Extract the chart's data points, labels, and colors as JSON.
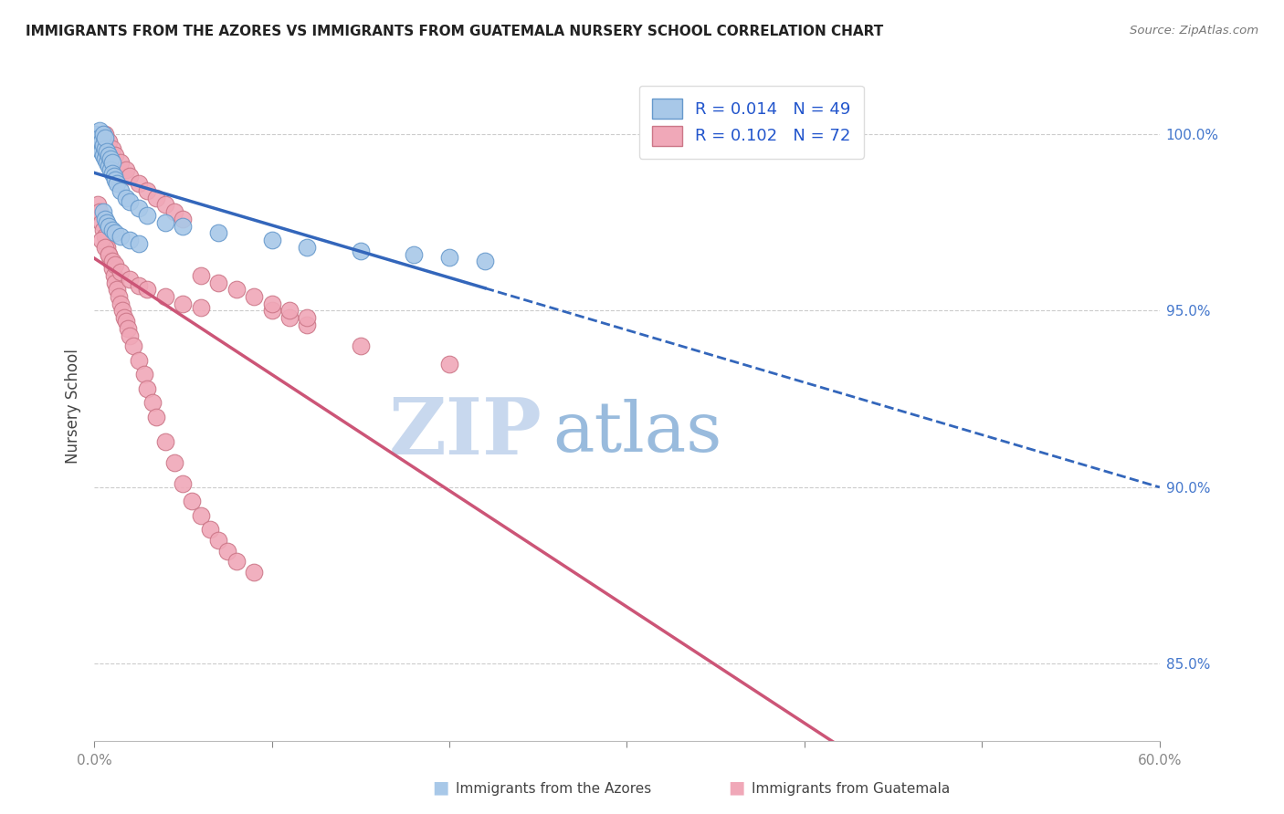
{
  "title": "IMMIGRANTS FROM THE AZORES VS IMMIGRANTS FROM GUATEMALA NURSERY SCHOOL CORRELATION CHART",
  "source": "Source: ZipAtlas.com",
  "ylabel": "Nursery School",
  "ylabel_right_ticks": [
    "85.0%",
    "90.0%",
    "95.0%",
    "100.0%"
  ],
  "ylabel_right_vals": [
    0.85,
    0.9,
    0.95,
    1.0
  ],
  "azores_color": "#a8c8e8",
  "azores_edge": "#6699cc",
  "guatemala_color": "#f0a8b8",
  "guatemala_edge": "#cc7788",
  "trend_azores_color": "#3366bb",
  "trend_guatemala_color": "#cc5577",
  "watermark_zip": "ZIP",
  "watermark_atlas": "atlas",
  "watermark_color_zip": "#c8d8ee",
  "watermark_color_atlas": "#99bbdd",
  "xmin": 0.0,
  "xmax": 0.6,
  "ymin": 0.828,
  "ymax": 1.018,
  "azores_x": [
    0.001,
    0.001,
    0.002,
    0.002,
    0.003,
    0.003,
    0.003,
    0.004,
    0.004,
    0.005,
    0.005,
    0.005,
    0.006,
    0.006,
    0.006,
    0.007,
    0.007,
    0.008,
    0.008,
    0.009,
    0.009,
    0.01,
    0.01,
    0.011,
    0.012,
    0.013,
    0.015,
    0.018,
    0.02,
    0.025,
    0.03,
    0.04,
    0.05,
    0.07,
    0.1,
    0.12,
    0.15,
    0.18,
    0.2,
    0.22,
    0.005,
    0.006,
    0.007,
    0.008,
    0.01,
    0.012,
    0.015,
    0.02,
    0.025
  ],
  "azores_y": [
    1.0,
    0.998,
    0.999,
    0.997,
    1.001,
    0.999,
    0.996,
    0.998,
    0.995,
    0.997,
    0.994,
    1.0,
    0.996,
    0.993,
    0.999,
    0.995,
    0.992,
    0.994,
    0.991,
    0.993,
    0.99,
    0.992,
    0.989,
    0.988,
    0.987,
    0.986,
    0.984,
    0.982,
    0.981,
    0.979,
    0.977,
    0.975,
    0.974,
    0.972,
    0.97,
    0.968,
    0.967,
    0.966,
    0.965,
    0.964,
    0.978,
    0.976,
    0.975,
    0.974,
    0.973,
    0.972,
    0.971,
    0.97,
    0.969
  ],
  "guatemala_x": [
    0.002,
    0.003,
    0.004,
    0.005,
    0.006,
    0.007,
    0.008,
    0.009,
    0.01,
    0.011,
    0.012,
    0.013,
    0.014,
    0.015,
    0.016,
    0.017,
    0.018,
    0.019,
    0.02,
    0.022,
    0.025,
    0.028,
    0.03,
    0.033,
    0.035,
    0.04,
    0.045,
    0.05,
    0.055,
    0.06,
    0.065,
    0.07,
    0.075,
    0.08,
    0.09,
    0.1,
    0.11,
    0.12,
    0.15,
    0.2,
    0.006,
    0.008,
    0.01,
    0.012,
    0.015,
    0.018,
    0.02,
    0.025,
    0.03,
    0.035,
    0.04,
    0.045,
    0.05,
    0.06,
    0.07,
    0.08,
    0.09,
    0.1,
    0.11,
    0.12,
    0.004,
    0.006,
    0.008,
    0.01,
    0.012,
    0.015,
    0.02,
    0.025,
    0.03,
    0.04,
    0.05,
    0.06
  ],
  "guatemala_y": [
    0.98,
    0.978,
    0.975,
    0.973,
    0.971,
    0.968,
    0.966,
    0.964,
    0.962,
    0.96,
    0.958,
    0.956,
    0.954,
    0.952,
    0.95,
    0.948,
    0.947,
    0.945,
    0.943,
    0.94,
    0.936,
    0.932,
    0.928,
    0.924,
    0.92,
    0.913,
    0.907,
    0.901,
    0.896,
    0.892,
    0.888,
    0.885,
    0.882,
    0.879,
    0.876,
    0.95,
    0.948,
    0.946,
    0.94,
    0.935,
    1.0,
    0.998,
    0.996,
    0.994,
    0.992,
    0.99,
    0.988,
    0.986,
    0.984,
    0.982,
    0.98,
    0.978,
    0.976,
    0.96,
    0.958,
    0.956,
    0.954,
    0.952,
    0.95,
    0.948,
    0.97,
    0.968,
    0.966,
    0.964,
    0.963,
    0.961,
    0.959,
    0.957,
    0.956,
    0.954,
    0.952,
    0.951
  ]
}
